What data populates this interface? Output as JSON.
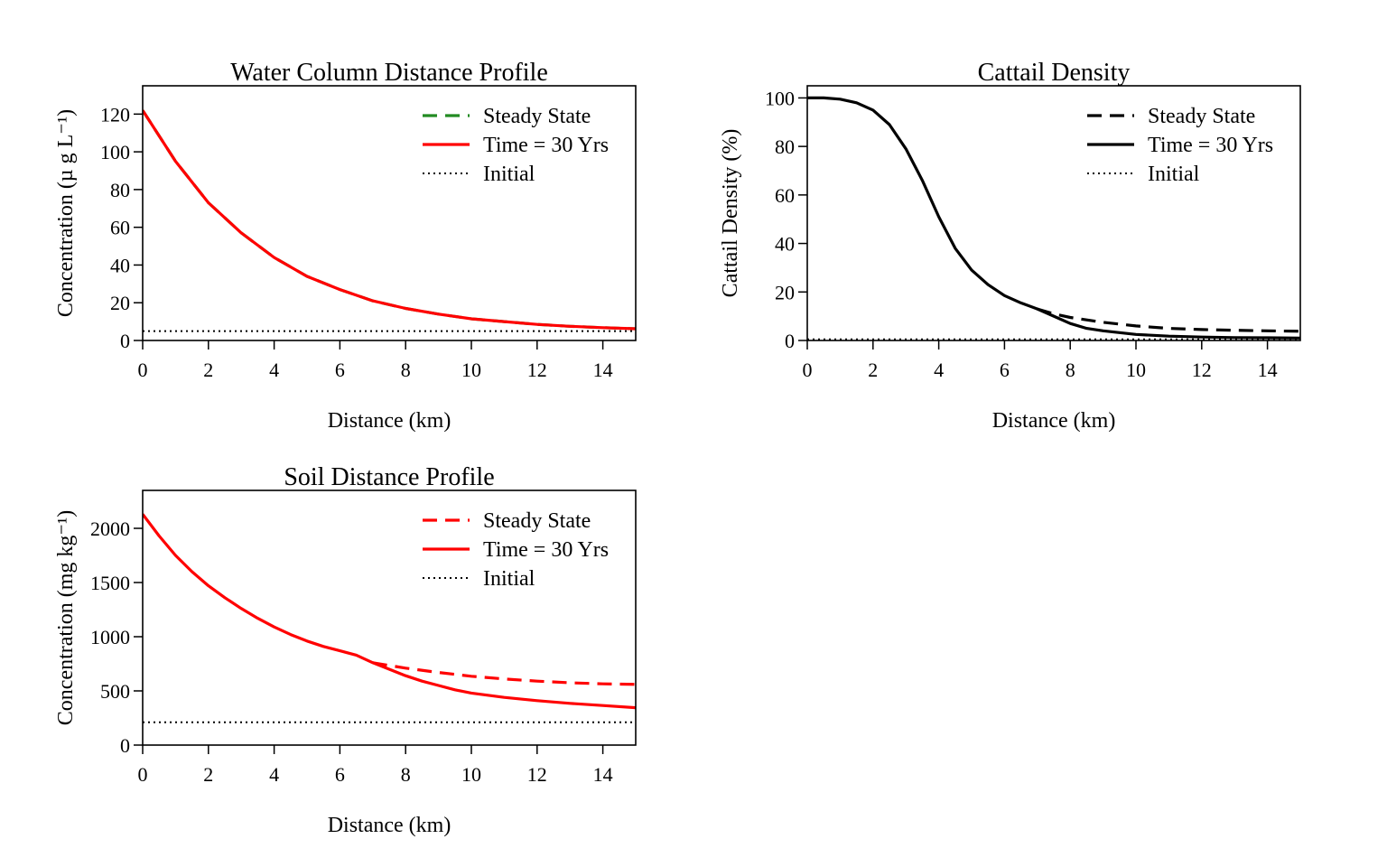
{
  "chart_data": [
    {
      "type": "line",
      "title": "Water Column Distance Profile",
      "xlabel": "Distance (km)",
      "ylabel": "Concentration (µ g L⁻¹)",
      "xlim": [
        0,
        15
      ],
      "ylim": [
        0,
        135
      ],
      "xticks": [
        0,
        2,
        4,
        6,
        8,
        10,
        12,
        14
      ],
      "yticks": [
        0,
        20,
        40,
        60,
        80,
        100,
        120
      ],
      "legend_position": "top-right",
      "grid": false,
      "series": [
        {
          "name": "Steady State",
          "style": "dashed",
          "color": "#228B22",
          "x": [
            0,
            1,
            2,
            3,
            4,
            5,
            6,
            7,
            8,
            9,
            10,
            11,
            12,
            13,
            14,
            15
          ],
          "y": [
            122,
            95,
            73,
            57,
            44,
            34,
            27,
            21,
            17,
            14,
            11.5,
            10,
            8.5,
            7.5,
            6.8,
            6.2
          ]
        },
        {
          "name": "Time = 30 Yrs",
          "style": "solid",
          "color": "#FF0000",
          "x": [
            0,
            1,
            2,
            3,
            4,
            5,
            6,
            7,
            8,
            9,
            10,
            11,
            12,
            13,
            14,
            15
          ],
          "y": [
            122,
            95,
            73,
            57,
            44,
            34,
            27,
            21,
            17,
            14,
            11.5,
            10,
            8.5,
            7.5,
            6.8,
            6.2
          ]
        },
        {
          "name": "Initial",
          "style": "dotted",
          "color": "#000000",
          "x": [
            0,
            15
          ],
          "y": [
            5,
            5
          ]
        }
      ]
    },
    {
      "type": "line",
      "title": "Cattail Density",
      "xlabel": "Distance (km)",
      "ylabel": "Cattail Density (%)",
      "xlim": [
        0,
        15
      ],
      "ylim": [
        0,
        105
      ],
      "xticks": [
        0,
        2,
        4,
        6,
        8,
        10,
        12,
        14
      ],
      "yticks": [
        0,
        20,
        40,
        60,
        80,
        100
      ],
      "legend_position": "top-right",
      "grid": false,
      "series": [
        {
          "name": "Steady State",
          "style": "dashed",
          "color": "#000000",
          "x": [
            7,
            7.5,
            8,
            9,
            10,
            11,
            12,
            13,
            14,
            15
          ],
          "y": [
            13,
            11,
            9.5,
            7.5,
            6,
            5,
            4.5,
            4.2,
            4,
            3.8
          ]
        },
        {
          "name": "Time = 30 Yrs",
          "style": "solid",
          "color": "#000000",
          "x": [
            0,
            0.5,
            1,
            1.5,
            2,
            2.5,
            3,
            3.5,
            4,
            4.5,
            5,
            5.5,
            6,
            6.5,
            7,
            7.5,
            8,
            8.5,
            9,
            10,
            11,
            12,
            13,
            14,
            15
          ],
          "y": [
            100,
            100,
            99.5,
            98,
            95,
            89,
            79,
            66,
            51,
            38,
            29,
            23,
            18.5,
            15.5,
            13,
            10,
            7,
            5,
            4,
            2.5,
            1.8,
            1.4,
            1.2,
            1.1,
            1
          ]
        },
        {
          "name": "Initial",
          "style": "dotted",
          "color": "#000000",
          "x": [
            0,
            15
          ],
          "y": [
            0.5,
            0.5
          ]
        }
      ]
    },
    {
      "type": "line",
      "title": "Soil Distance Profile",
      "xlabel": "Distance (km)",
      "ylabel": "Concentration (mg kg⁻¹)",
      "xlim": [
        0,
        15
      ],
      "ylim": [
        0,
        2350
      ],
      "xticks": [
        0,
        2,
        4,
        6,
        8,
        10,
        12,
        14
      ],
      "yticks": [
        0,
        500,
        1000,
        1500,
        2000
      ],
      "legend_position": "top-right",
      "grid": false,
      "series": [
        {
          "name": "Steady State",
          "style": "dashed",
          "color": "#FF0000",
          "x": [
            7,
            7.5,
            8,
            9,
            10,
            11,
            12,
            13,
            14,
            15
          ],
          "y": [
            760,
            735,
            710,
            670,
            635,
            610,
            590,
            575,
            565,
            560
          ]
        },
        {
          "name": "Time = 30 Yrs",
          "style": "solid",
          "color": "#FF0000",
          "x": [
            0,
            0.5,
            1,
            1.5,
            2,
            2.5,
            3,
            3.5,
            4,
            4.5,
            5,
            5.5,
            6,
            6.5,
            7,
            7.5,
            8,
            8.5,
            9,
            9.5,
            10,
            11,
            12,
            13,
            14,
            15
          ],
          "y": [
            2130,
            1930,
            1750,
            1600,
            1470,
            1360,
            1260,
            1170,
            1090,
            1020,
            960,
            910,
            870,
            830,
            760,
            700,
            640,
            590,
            550,
            510,
            480,
            440,
            410,
            385,
            365,
            345
          ]
        },
        {
          "name": "Initial",
          "style": "dotted",
          "color": "#000000",
          "x": [
            0,
            15
          ],
          "y": [
            210,
            210
          ]
        }
      ]
    }
  ]
}
